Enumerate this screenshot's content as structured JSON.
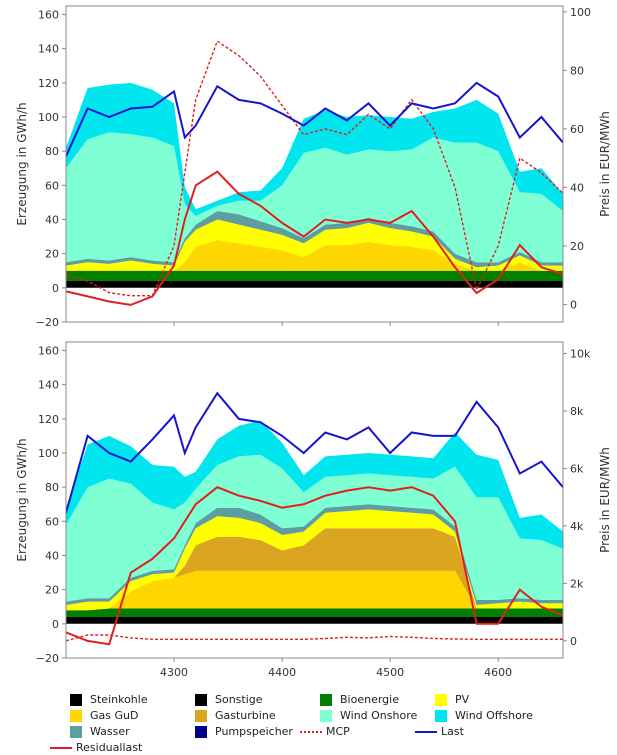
{
  "chart_data": [
    {
      "type": "area",
      "panel": "top",
      "ylabel": "Erzeugung in GWh/h",
      "y2label": "Preis in EUR/MWh",
      "ylim": [
        -20,
        165
      ],
      "y2lim": [
        -6,
        102
      ],
      "xlim": [
        4200,
        4660
      ],
      "yticks": [
        -20,
        0,
        20,
        40,
        60,
        80,
        100,
        120,
        140,
        160
      ],
      "y2ticks": [
        0,
        20,
        40,
        60,
        80,
        100
      ],
      "y2ticklabels": [
        "0",
        "20",
        "40",
        "60",
        "80",
        "100"
      ],
      "xticks": [
        4300,
        4400,
        4500,
        4600
      ],
      "xticklabels": [],
      "x": [
        4200,
        4220,
        4240,
        4260,
        4280,
        4300,
        4310,
        4320,
        4340,
        4360,
        4380,
        4400,
        4420,
        4440,
        4460,
        4480,
        4500,
        4520,
        4540,
        4560,
        4580,
        4600,
        4620,
        4640,
        4660
      ],
      "series": [
        {
          "name": "Steinkohle",
          "values": [
            0,
            0,
            0,
            0,
            0,
            0,
            0,
            0,
            0,
            0,
            0,
            0,
            0,
            0,
            0,
            0,
            0,
            0,
            0,
            0,
            0,
            0,
            0,
            0,
            0
          ]
        },
        {
          "name": "Sonstige",
          "values": [
            4,
            4,
            4,
            4,
            4,
            4,
            4,
            4,
            4,
            4,
            4,
            4,
            4,
            4,
            4,
            4,
            4,
            4,
            4,
            4,
            4,
            4,
            4,
            4,
            4
          ]
        },
        {
          "name": "Bioenergie",
          "values": [
            6,
            6,
            6,
            6,
            6,
            6,
            6,
            6,
            6,
            6,
            6,
            6,
            6,
            6,
            6,
            6,
            6,
            6,
            6,
            6,
            6,
            6,
            6,
            6,
            6
          ]
        },
        {
          "name": "Gas GuD",
          "values": [
            0,
            0,
            0,
            0,
            0,
            0,
            5,
            14,
            18,
            16,
            14,
            12,
            8,
            15,
            15,
            17,
            15,
            14,
            12,
            4,
            0,
            0,
            5,
            0,
            0
          ]
        },
        {
          "name": "Gasturbine",
          "values": [
            0,
            0,
            0,
            0,
            0,
            0,
            0,
            0,
            0,
            0,
            0,
            0,
            0,
            0,
            0,
            0,
            0,
            0,
            0,
            0,
            0,
            0,
            0,
            0,
            0
          ]
        },
        {
          "name": "PV",
          "values": [
            3,
            5,
            4,
            6,
            4,
            3,
            12,
            10,
            12,
            11,
            10,
            9,
            8,
            9,
            10,
            11,
            10,
            9,
            8,
            3,
            2,
            3,
            4,
            3,
            3
          ]
        },
        {
          "name": "Wasser",
          "values": [
            2,
            2,
            2,
            2,
            2,
            2,
            2,
            3,
            5,
            6,
            5,
            4,
            3,
            3,
            3,
            3,
            3,
            3,
            3,
            3,
            3,
            2,
            2,
            2,
            2
          ]
        },
        {
          "name": "Wind Onshore",
          "values": [
            55,
            70,
            75,
            72,
            72,
            68,
            20,
            5,
            3,
            8,
            12,
            25,
            50,
            45,
            40,
            40,
            42,
            45,
            55,
            65,
            70,
            65,
            35,
            40,
            30
          ]
        },
        {
          "name": "Wind Offshore",
          "values": [
            12,
            30,
            28,
            30,
            28,
            25,
            10,
            4,
            3,
            5,
            6,
            10,
            20,
            22,
            22,
            20,
            20,
            18,
            15,
            20,
            25,
            22,
            12,
            15,
            10
          ]
        },
        {
          "name": "Pumpspeicher",
          "values": [
            0,
            0,
            0,
            0,
            0,
            0,
            0,
            0,
            0,
            0,
            0,
            0,
            0,
            0,
            0,
            0,
            0,
            0,
            0,
            0,
            0,
            0,
            0,
            0,
            0
          ]
        },
        {
          "name": "Last",
          "values": [
            77,
            105,
            100,
            105,
            106,
            115,
            88,
            95,
            118,
            110,
            108,
            102,
            95,
            105,
            98,
            108,
            95,
            108,
            105,
            108,
            120,
            112,
            88,
            100,
            85
          ]
        },
        {
          "name": "Residuallast",
          "values": [
            -2,
            -5,
            -8,
            -10,
            -5,
            13,
            40,
            60,
            68,
            55,
            48,
            38,
            30,
            40,
            38,
            40,
            38,
            45,
            30,
            12,
            -3,
            5,
            25,
            12,
            8
          ]
        },
        {
          "name": "MCP",
          "values": [
            10,
            8,
            4,
            3,
            3,
            20,
            45,
            70,
            90,
            85,
            78,
            68,
            58,
            60,
            58,
            65,
            60,
            70,
            60,
            40,
            5,
            20,
            50,
            45,
            38
          ]
        }
      ]
    },
    {
      "type": "area",
      "panel": "bottom",
      "ylabel": "Erzeugung in GWh/h",
      "y2label": "Preis in EUR/MWh",
      "ylim": [
        -20,
        165
      ],
      "y2lim": [
        -600,
        10400
      ],
      "xlim": [
        4200,
        4660
      ],
      "yticks": [
        -20,
        0,
        20,
        40,
        60,
        80,
        100,
        120,
        140,
        160
      ],
      "y2ticks": [
        0,
        2000,
        4000,
        6000,
        8000,
        10000
      ],
      "y2ticklabels": [
        "0",
        "2k",
        "4k",
        "6k",
        "8k",
        "10k"
      ],
      "xticks": [
        4300,
        4400,
        4500,
        4600
      ],
      "xticklabels": [
        "4300",
        "4400",
        "4500",
        "4600"
      ],
      "x": [
        4200,
        4220,
        4240,
        4260,
        4280,
        4300,
        4310,
        4320,
        4340,
        4360,
        4380,
        4400,
        4420,
        4440,
        4460,
        4480,
        4500,
        4520,
        4540,
        4560,
        4580,
        4600,
        4620,
        4640,
        4660
      ],
      "series": [
        {
          "name": "Steinkohle",
          "values": [
            0,
            0,
            0,
            0,
            0,
            0,
            0,
            0,
            0,
            0,
            0,
            0,
            0,
            0,
            0,
            0,
            0,
            0,
            0,
            0,
            0,
            0,
            0,
            0,
            0
          ]
        },
        {
          "name": "Sonstige",
          "values": [
            4,
            4,
            4,
            4,
            4,
            4,
            4,
            4,
            4,
            4,
            4,
            4,
            4,
            4,
            4,
            4,
            4,
            4,
            4,
            4,
            4,
            4,
            4,
            4,
            4
          ]
        },
        {
          "name": "Bioenergie",
          "values": [
            4,
            4,
            5,
            5,
            5,
            5,
            5,
            5,
            5,
            5,
            5,
            5,
            5,
            5,
            5,
            5,
            5,
            5,
            5,
            5,
            5,
            5,
            5,
            5,
            5
          ]
        },
        {
          "name": "Gas GuD",
          "values": [
            0,
            0,
            0,
            10,
            16,
            18,
            20,
            22,
            22,
            22,
            22,
            22,
            22,
            22,
            22,
            22,
            22,
            22,
            22,
            22,
            0,
            0,
            0,
            0,
            0
          ]
        },
        {
          "name": "Gasturbine",
          "values": [
            0,
            0,
            0,
            0,
            0,
            0,
            5,
            15,
            20,
            20,
            18,
            12,
            15,
            25,
            25,
            25,
            25,
            25,
            25,
            20,
            0,
            0,
            0,
            0,
            0
          ]
        },
        {
          "name": "PV",
          "values": [
            3,
            5,
            4,
            6,
            4,
            3,
            10,
            10,
            12,
            11,
            10,
            9,
            8,
            9,
            10,
            11,
            10,
            9,
            8,
            3,
            2,
            3,
            4,
            3,
            3
          ]
        },
        {
          "name": "Wasser",
          "values": [
            2,
            2,
            2,
            2,
            2,
            2,
            2,
            3,
            5,
            6,
            5,
            4,
            3,
            3,
            3,
            3,
            3,
            3,
            3,
            3,
            3,
            2,
            2,
            2,
            2
          ]
        },
        {
          "name": "Wind Onshore",
          "values": [
            45,
            65,
            70,
            55,
            40,
            35,
            25,
            20,
            25,
            30,
            35,
            35,
            20,
            18,
            18,
            18,
            18,
            18,
            18,
            35,
            60,
            60,
            35,
            35,
            30
          ]
        },
        {
          "name": "Wind Offshore",
          "values": [
            10,
            25,
            25,
            22,
            22,
            25,
            15,
            10,
            15,
            18,
            20,
            15,
            10,
            12,
            12,
            12,
            12,
            12,
            12,
            20,
            25,
            22,
            12,
            15,
            10
          ]
        },
        {
          "name": "Pumpspeicher",
          "values": [
            0,
            0,
            0,
            0,
            0,
            0,
            0,
            0,
            0,
            0,
            0,
            0,
            0,
            0,
            0,
            0,
            0,
            0,
            0,
            0,
            0,
            0,
            0,
            0,
            0
          ]
        },
        {
          "name": "Last",
          "values": [
            65,
            110,
            100,
            95,
            108,
            122,
            100,
            115,
            135,
            120,
            118,
            110,
            100,
            112,
            108,
            115,
            100,
            112,
            110,
            110,
            130,
            115,
            88,
            95,
            80
          ]
        },
        {
          "name": "Residuallast",
          "values": [
            -5,
            -10,
            -12,
            30,
            38,
            50,
            60,
            70,
            80,
            75,
            72,
            68,
            70,
            75,
            78,
            80,
            78,
            80,
            75,
            60,
            0,
            0,
            20,
            10,
            5
          ]
        },
        {
          "name": "MCP",
          "values": [
            0,
            200,
            200,
            100,
            50,
            50,
            50,
            50,
            50,
            50,
            50,
            50,
            50,
            80,
            120,
            100,
            150,
            120,
            80,
            60,
            50,
            50,
            50,
            50,
            50
          ]
        }
      ]
    }
  ],
  "legend": {
    "items": [
      {
        "label": "Steinkohle",
        "color": "#000000",
        "kind": "box"
      },
      {
        "label": "Sonstige",
        "color": "#000000",
        "kind": "box"
      },
      {
        "label": "Bioenergie",
        "color": "#007f00",
        "kind": "box"
      },
      {
        "label": "PV",
        "color": "#ffff00",
        "kind": "box"
      },
      {
        "label": "Gas GuD",
        "color": "#ffd700",
        "kind": "box"
      },
      {
        "label": "Gasturbine",
        "color": "#daa520",
        "kind": "box"
      },
      {
        "label": "Wind Onshore",
        "color": "#7fffd4",
        "kind": "box"
      },
      {
        "label": "Wind Offshore",
        "color": "#00e5ee",
        "kind": "box"
      },
      {
        "label": "Wasser",
        "color": "#5f9ea0",
        "kind": "box"
      },
      {
        "label": "Pumpspeicher",
        "color": "#00008b",
        "kind": "box"
      },
      {
        "label": "MCP",
        "color": "#e02020",
        "kind": "dashed"
      },
      {
        "label": "Last",
        "color": "#1515d0",
        "kind": "line"
      },
      {
        "label": "Residuallast",
        "color": "#e02020",
        "kind": "line"
      }
    ]
  }
}
